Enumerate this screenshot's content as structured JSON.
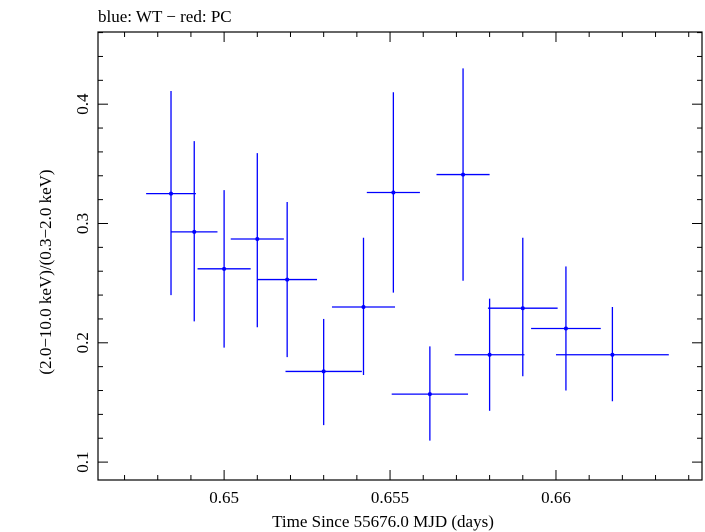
{
  "chart_data": {
    "type": "scatter",
    "title": "blue: WT − red: PC",
    "xlabel": "Time Since 55676.0 MJD (days)",
    "ylabel": "(2.0−10.0 keV)/(0.3−2.0 keV)",
    "xlim": [
      0.6462,
      0.6644
    ],
    "ylim": [
      0.085,
      0.4605
    ],
    "x_ticks": [
      0.65,
      0.655,
      0.66
    ],
    "x_tick_labels": [
      "0.65",
      "0.655",
      "0.66"
    ],
    "y_ticks": [
      0.1,
      0.2,
      0.3,
      0.4
    ],
    "y_tick_labels": [
      "0.1",
      "0.2",
      "0.3",
      "0.4"
    ],
    "grid": false,
    "series": [
      {
        "color": "#0000ff",
        "points": [
          {
            "x": 0.6484,
            "y": 0.325,
            "x_err": 0.00075,
            "y_low": 0.24,
            "y_high": 0.411
          },
          {
            "x": 0.6491,
            "y": 0.293,
            "x_err": 0.0007,
            "y_low": 0.218,
            "y_high": 0.369
          },
          {
            "x": 0.65,
            "y": 0.262,
            "x_err": 0.0008,
            "y_low": 0.196,
            "y_high": 0.328
          },
          {
            "x": 0.651,
            "y": 0.287,
            "x_err": 0.0008,
            "y_low": 0.213,
            "y_high": 0.359
          },
          {
            "x": 0.6519,
            "y": 0.253,
            "x_err": 0.0009,
            "y_low": 0.188,
            "y_high": 0.318
          },
          {
            "x": 0.653,
            "y": 0.176,
            "x_err": 0.00115,
            "y_low": 0.131,
            "y_high": 0.22
          },
          {
            "x": 0.6542,
            "y": 0.23,
            "x_err": 0.00095,
            "y_low": 0.173,
            "y_high": 0.288
          },
          {
            "x": 0.6551,
            "y": 0.326,
            "x_err": 0.0008,
            "y_low": 0.242,
            "y_high": 0.41
          },
          {
            "x": 0.6562,
            "y": 0.157,
            "x_err": 0.00115,
            "y_low": 0.118,
            "y_high": 0.197
          },
          {
            "x": 0.6572,
            "y": 0.341,
            "x_err": 0.0008,
            "y_low": 0.252,
            "y_high": 0.43
          },
          {
            "x": 0.658,
            "y": 0.19,
            "x_err": 0.00105,
            "y_low": 0.143,
            "y_high": 0.237
          },
          {
            "x": 0.659,
            "y": 0.229,
            "x_err": 0.00105,
            "y_low": 0.172,
            "y_high": 0.288
          },
          {
            "x": 0.6603,
            "y": 0.212,
            "x_err": 0.00105,
            "y_low": 0.16,
            "y_high": 0.264
          },
          {
            "x": 0.6617,
            "y": 0.19,
            "x_err": 0.0017,
            "y_low": 0.151,
            "y_high": 0.23
          }
        ]
      }
    ]
  }
}
